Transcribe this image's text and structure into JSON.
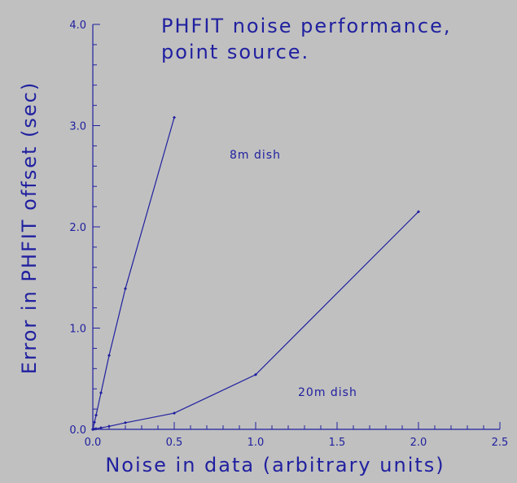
{
  "colors": {
    "background": "#c0c0c0",
    "ink": "#2020a0"
  },
  "chart_data": {
    "type": "line",
    "title_lines": [
      "PHFIT noise performance,",
      "point source."
    ],
    "xlabel": "Noise in data (arbitrary units)",
    "ylabel": "Error in PHFIT offset (sec)",
    "xlim": [
      0,
      2.5
    ],
    "ylim": [
      0,
      4
    ],
    "x_ticks": [
      "0.0",
      "0.5",
      "1.0",
      "1.5",
      "2.0",
      "2.5"
    ],
    "y_ticks": [
      "0.0",
      "1.0",
      "2.0",
      "3.0",
      "4.0"
    ],
    "grid": false,
    "series": [
      {
        "name": "8m dish",
        "x": [
          0.0,
          0.01,
          0.02,
          0.05,
          0.1,
          0.2,
          0.5
        ],
        "y": [
          0.0,
          0.07,
          0.14,
          0.36,
          0.73,
          1.39,
          3.08
        ]
      },
      {
        "name": "20m dish",
        "x": [
          0.0,
          0.01,
          0.02,
          0.05,
          0.1,
          0.2,
          0.5,
          1.0,
          2.0
        ],
        "y": [
          0.0,
          0.003,
          0.006,
          0.015,
          0.03,
          0.065,
          0.16,
          0.54,
          2.15
        ]
      }
    ]
  }
}
